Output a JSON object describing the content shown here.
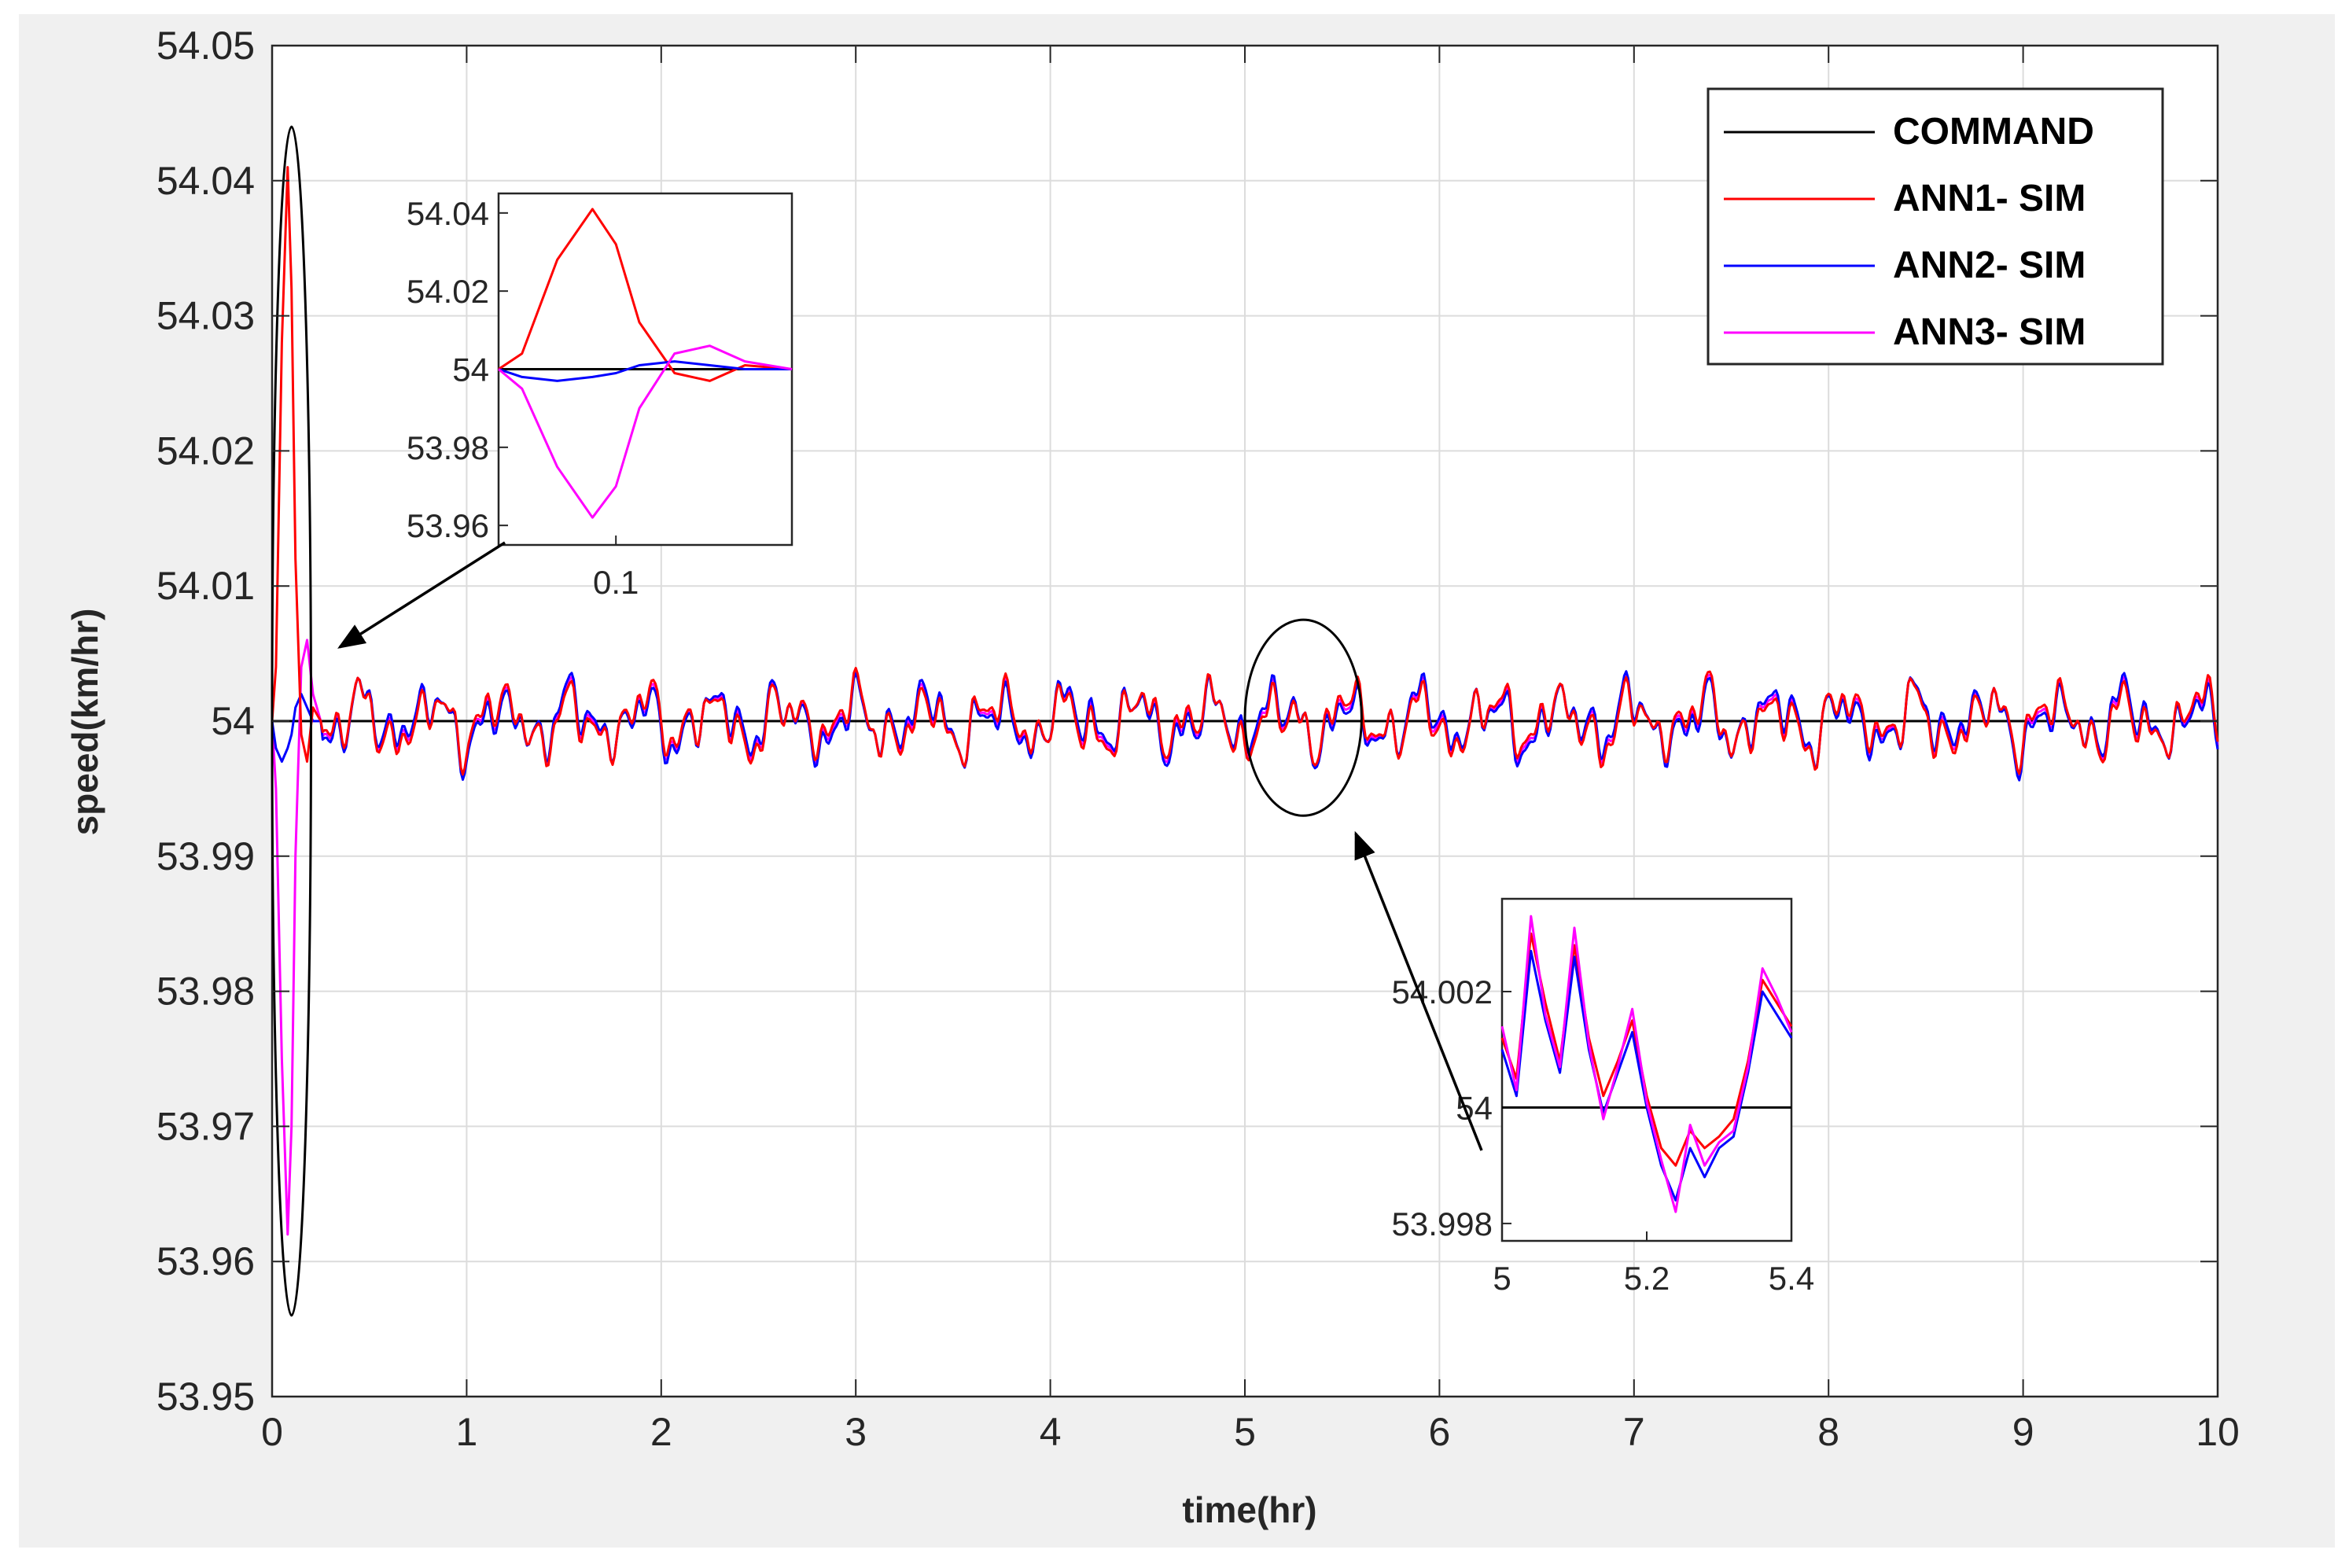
{
  "chart_data": {
    "type": "line",
    "title": "",
    "xlabel": "time(hr)",
    "ylabel": "speed(km/hr)",
    "xlim": [
      0,
      10
    ],
    "ylim": [
      53.95,
      54.05
    ],
    "x_ticks": [
      "0",
      "1",
      "2",
      "3",
      "4",
      "5",
      "6",
      "7",
      "8",
      "9",
      "10"
    ],
    "y_ticks": [
      "53.95",
      "53.96",
      "53.97",
      "53.98",
      "53.99",
      "54",
      "54.01",
      "54.02",
      "54.03",
      "54.04",
      "54.05"
    ],
    "grid": true,
    "legend_position": "top-right",
    "series": [
      {
        "name": "COMMAND",
        "color": "#000000",
        "constant": 54.0
      },
      {
        "name": "ANN1- SIM",
        "color": "#ff0000",
        "transient": {
          "x": [
            0,
            0.02,
            0.05,
            0.08,
            0.1,
            0.12,
            0.15,
            0.18,
            0.21,
            0.25
          ],
          "y": [
            54.0,
            54.004,
            54.028,
            54.041,
            54.032,
            54.012,
            53.999,
            53.997,
            54.001,
            54.0
          ]
        }
      },
      {
        "name": "ANN2- SIM",
        "color": "#0000ff",
        "transient": {
          "x": [
            0,
            0.02,
            0.05,
            0.08,
            0.1,
            0.12,
            0.15,
            0.18,
            0.21,
            0.25
          ],
          "y": [
            54.0,
            53.998,
            53.997,
            53.998,
            53.999,
            54.001,
            54.002,
            54.001,
            54.0,
            54.0
          ]
        }
      },
      {
        "name": "ANN3- SIM",
        "color": "#ff00ff",
        "transient": {
          "x": [
            0,
            0.02,
            0.05,
            0.08,
            0.1,
            0.12,
            0.15,
            0.18,
            0.21,
            0.25
          ],
          "y": [
            54.0,
            53.995,
            53.975,
            53.962,
            53.97,
            53.99,
            54.004,
            54.006,
            54.002,
            54.0
          ]
        }
      }
    ],
    "steady_state": {
      "mean": 54.0,
      "x_start": 0.25,
      "x_end": 10.0,
      "amplitude": 0.0035,
      "ann1_offset": 0.0003,
      "ann2_offset": -0.0003,
      "note": "noisy oscillation of ANN1/ANN2/ANN3 around the 54 km/hr command"
    },
    "zoom_ellipses": [
      {
        "x_range": [
          0,
          0.2
        ],
        "y_range": [
          53.956,
          54.044
        ]
      },
      {
        "x_range": [
          5.0,
          5.6
        ],
        "y_range": [
          53.993,
          54.0075
        ]
      }
    ],
    "insets": [
      {
        "name": "startup-zoom",
        "xlim": [
          0,
          0.25
        ],
        "ylim": [
          53.955,
          54.045
        ],
        "x_ticks": [
          "0.1"
        ],
        "y_ticks": [
          "53.96",
          "53.98",
          "54",
          "54.02",
          "54.04"
        ]
      },
      {
        "name": "steady-zoom",
        "xlim": [
          5,
          5.4
        ],
        "ylim": [
          53.9977,
          54.0036
        ],
        "x_ticks": [
          "5",
          "5.2",
          "5.4"
        ],
        "y_ticks": [
          "53.998",
          "54",
          "54.002"
        ],
        "series": [
          {
            "name": "ANN1- SIM",
            "x": [
              5.0,
              5.02,
              5.04,
              5.06,
              5.08,
              5.1,
              5.12,
              5.14,
              5.16,
              5.18,
              5.2,
              5.22,
              5.24,
              5.26,
              5.28,
              5.3,
              5.32,
              5.34,
              5.36,
              5.38,
              5.4
            ],
            "y": [
              54.0012,
              54.0005,
              54.003,
              54.0018,
              54.0008,
              54.0028,
              54.0012,
              54.0002,
              54.0008,
              54.0015,
              54.0002,
              53.9993,
              53.999,
              53.9996,
              53.9993,
              53.9995,
              53.9998,
              54.0008,
              54.0022,
              54.0018,
              54.0014
            ]
          },
          {
            "name": "ANN2- SIM",
            "x": [
              5.0,
              5.02,
              5.04,
              5.06,
              5.08,
              5.1,
              5.12,
              5.14,
              5.16,
              5.18,
              5.2,
              5.22,
              5.24,
              5.26,
              5.28,
              5.3,
              5.32,
              5.34,
              5.36,
              5.38,
              5.4
            ],
            "y": [
              54.001,
              54.0002,
              54.0027,
              54.0015,
              54.0006,
              54.0026,
              54.001,
              53.9999,
              54.0006,
              54.0013,
              54.0,
              53.999,
              53.9984,
              53.9993,
              53.9988,
              53.9993,
              53.9995,
              54.0006,
              54.002,
              54.0016,
              54.0012
            ]
          },
          {
            "name": "ANN3- SIM",
            "x": [
              5.0,
              5.02,
              5.04,
              5.06,
              5.08,
              5.1,
              5.12,
              5.14,
              5.16,
              5.18,
              5.2,
              5.22,
              5.24,
              5.26,
              5.28,
              5.3,
              5.32,
              5.34,
              5.36,
              5.38,
              5.4
            ],
            "y": [
              54.0014,
              54.0003,
              54.0033,
              54.0016,
              54.0007,
              54.0031,
              54.0011,
              53.9998,
              54.0007,
              54.0017,
              54.0001,
              53.9991,
              53.9982,
              53.9997,
              53.999,
              53.9994,
              53.9996,
              54.0007,
              54.0024,
              54.0019,
              54.0013
            ]
          }
        ]
      }
    ]
  }
}
